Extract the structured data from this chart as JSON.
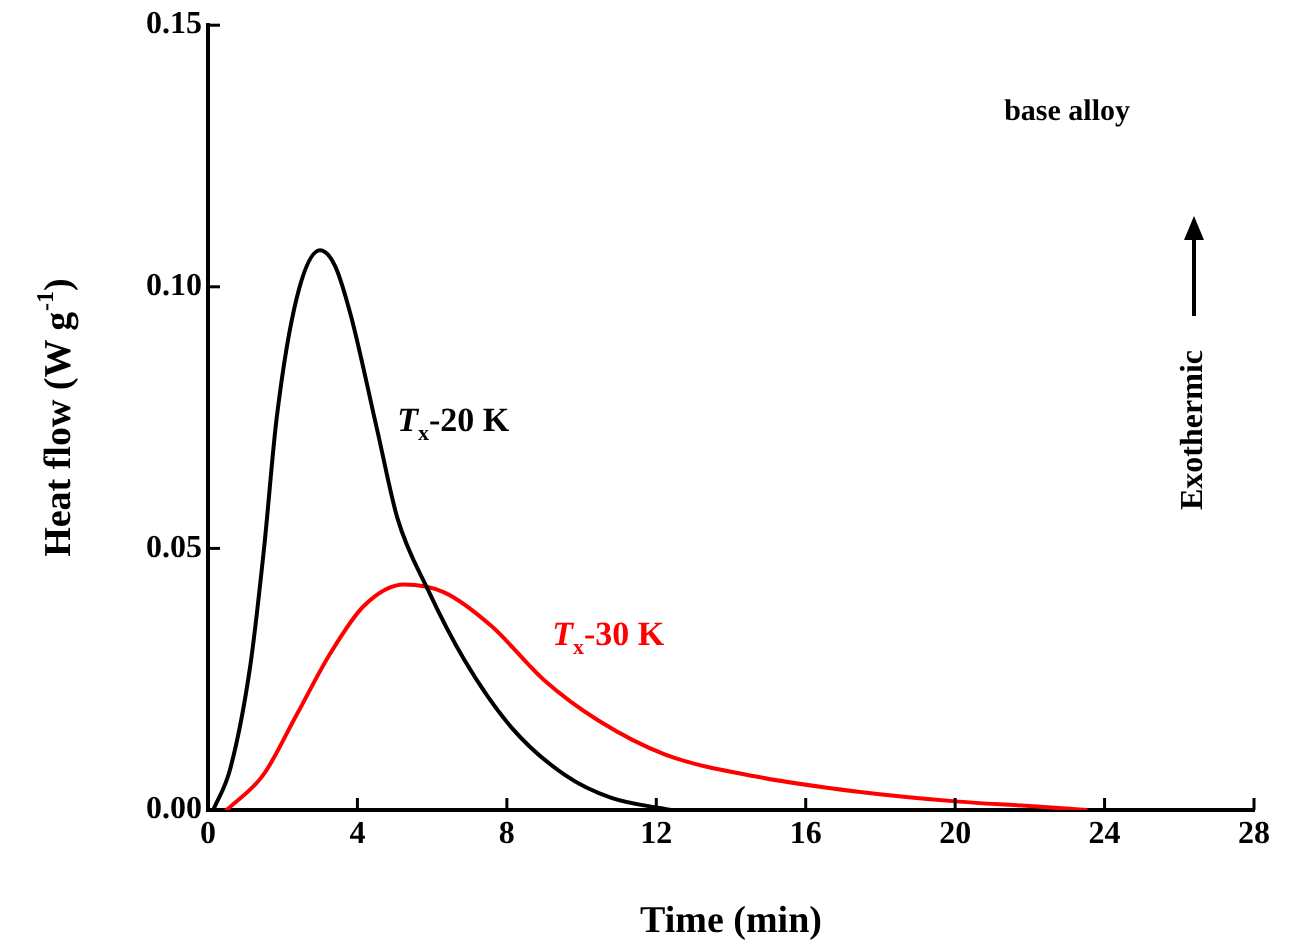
{
  "chart_data": {
    "type": "line",
    "xlabel": "Time (min)",
    "ylabel": "Heat flow (W g$^{-1}$)",
    "xlim": [
      0,
      28
    ],
    "xticks": [
      0,
      4,
      8,
      12,
      16,
      20,
      24,
      28
    ],
    "ylim": [
      0,
      0.15
    ],
    "yticks": [
      {
        "value": 0,
        "label": "0.00"
      },
      {
        "value": 0.05,
        "label": "0.05"
      },
      {
        "value": 0.1,
        "label": "0.10"
      },
      {
        "value": 0.15,
        "label": "0.15"
      }
    ],
    "grid": false,
    "legend": false,
    "marker": "none",
    "line_style": "solid",
    "series": [
      {
        "name": "T$_{x}$-20 K",
        "color": "#000000",
        "x": [
          0.14,
          0.6,
          1.13,
          1.5,
          1.84,
          2.38,
          3.0,
          3.4,
          3.82,
          4.53,
          5.07,
          5.88,
          6.86,
          8.12,
          9.55,
          10.8,
          12.4
        ],
        "values": [
          0,
          0.008,
          0.0275,
          0.05,
          0.075,
          0.098,
          0.107,
          0.104,
          0.0946,
          0.0726,
          0.0558,
          0.0422,
          0.0287,
          0.0158,
          0.0067,
          0.0023,
          0
        ]
      },
      {
        "name": "T$_{x}$-30 K",
        "color": "#ff0000",
        "x": [
          0.5,
          1.48,
          2.38,
          3.28,
          4.17,
          5.25,
          6.32,
          7.58,
          9.0,
          10.45,
          12.24,
          14.75,
          17.4,
          20.1,
          21.9,
          23.5
        ],
        "values": [
          0,
          0.0067,
          0.0183,
          0.03,
          0.039,
          0.0431,
          0.0416,
          0.0352,
          0.0248,
          0.0171,
          0.0106,
          0.0063,
          0.0035,
          0.0016,
          0.0008,
          0
        ]
      }
    ],
    "annotations": [
      "base alloy",
      "Exothermic"
    ]
  }
}
